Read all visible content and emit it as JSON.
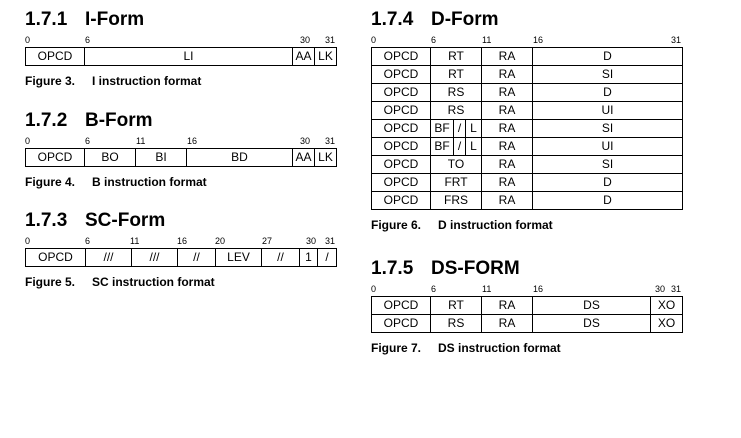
{
  "sections": {
    "iform": {
      "number": "1.7.1",
      "title": "I-Form",
      "bits": [
        "0",
        "6",
        "30",
        "31"
      ],
      "rows": [
        [
          "OPCD",
          "LI",
          "AA",
          "LK"
        ]
      ],
      "figure_label": "Figure 3.",
      "caption": "I instruction format"
    },
    "bform": {
      "number": "1.7.2",
      "title": "B-Form",
      "bits": [
        "0",
        "6",
        "11",
        "16",
        "30",
        "31"
      ],
      "rows": [
        [
          "OPCD",
          "BO",
          "BI",
          "BD",
          "AA",
          "LK"
        ]
      ],
      "figure_label": "Figure 4.",
      "caption": "B instruction format"
    },
    "scform": {
      "number": "1.7.3",
      "title": "SC-Form",
      "bits": [
        "0",
        "6",
        "11",
        "16",
        "20",
        "27",
        "30",
        "31"
      ],
      "rows": [
        [
          "OPCD",
          "///",
          "///",
          "//",
          "LEV",
          "//",
          "1",
          "/"
        ]
      ],
      "figure_label": "Figure 5.",
      "caption": "SC instruction format"
    },
    "dform": {
      "number": "1.7.4",
      "title": "D-Form",
      "bits": [
        "0",
        "6",
        "11",
        "16",
        "31"
      ],
      "rows": [
        [
          "OPCD",
          "RT",
          "RA",
          "D"
        ],
        [
          "OPCD",
          "RT",
          "RA",
          "SI"
        ],
        [
          "OPCD",
          "RS",
          "RA",
          "D"
        ],
        [
          "OPCD",
          "RS",
          "RA",
          "UI"
        ],
        [
          "OPCD",
          "BF",
          "/",
          "L",
          "RA",
          "SI"
        ],
        [
          "OPCD",
          "BF",
          "/",
          "L",
          "RA",
          "UI"
        ],
        [
          "OPCD",
          "TO",
          "RA",
          "SI"
        ],
        [
          "OPCD",
          "FRT",
          "RA",
          "D"
        ],
        [
          "OPCD",
          "FRS",
          "RA",
          "D"
        ]
      ],
      "figure_label": "Figure 6.",
      "caption": "D instruction format"
    },
    "dsform": {
      "number": "1.7.5",
      "title": "DS-FORM",
      "bits": [
        "0",
        "6",
        "11",
        "16",
        "30",
        "31"
      ],
      "rows": [
        [
          "OPCD",
          "RT",
          "RA",
          "DS",
          "XO"
        ],
        [
          "OPCD",
          "RS",
          "RA",
          "DS",
          "XO"
        ]
      ],
      "figure_label": "Figure 7.",
      "caption": "DS instruction format"
    }
  }
}
